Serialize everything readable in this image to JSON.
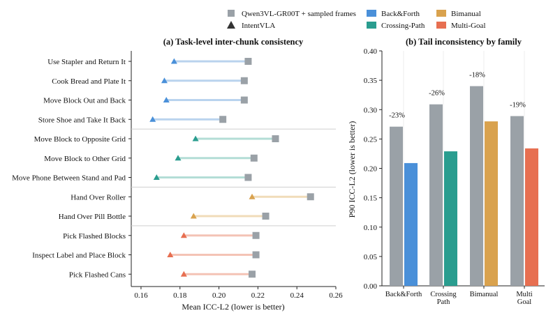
{
  "legend": {
    "items": [
      {
        "label": "Qwen3VL-GR00T + sampled frames",
        "marker": "square",
        "color": "#9aa1a7"
      },
      {
        "label": "IntentVLA",
        "marker": "triangle",
        "color": "#333333"
      },
      {
        "label": "Back&Forth",
        "marker": "patch",
        "color": "#4a90d9"
      },
      {
        "label": "Crossing-Path",
        "marker": "patch",
        "color": "#2a9d8f"
      },
      {
        "label": "Bimanual",
        "marker": "patch",
        "color": "#d9a24e"
      },
      {
        "label": "Multi-Goal",
        "marker": "patch",
        "color": "#e76f51"
      }
    ]
  },
  "chart_data": [
    {
      "type": "dumbbell",
      "title": "(a) Task-level inter-chunk consistency",
      "xlabel": "Mean ICC-L2 (lower is better)",
      "xlim": [
        0.155,
        0.26
      ],
      "xticks": [
        "0.16",
        "0.18",
        "0.20",
        "0.22",
        "0.24",
        "0.26"
      ],
      "xtick_values": [
        0.16,
        0.18,
        0.2,
        0.22,
        0.24,
        0.26
      ],
      "series_names": [
        "Qwen3VL-GR00T + sampled frames",
        "IntentVLA"
      ],
      "rows": [
        {
          "task": "Use Stapler and Return It",
          "family": "Back&Forth",
          "baseline": 0.215,
          "intentvla": 0.177
        },
        {
          "task": "Cook Bread and Plate It",
          "family": "Back&Forth",
          "baseline": 0.213,
          "intentvla": 0.172
        },
        {
          "task": "Move Block Out and Back",
          "family": "Back&Forth",
          "baseline": 0.213,
          "intentvla": 0.173
        },
        {
          "task": "Store Shoe and Take It Back",
          "family": "Back&Forth",
          "baseline": 0.202,
          "intentvla": 0.166
        },
        {
          "task": "Move Block to Opposite Grid",
          "family": "Crossing-Path",
          "baseline": 0.229,
          "intentvla": 0.188
        },
        {
          "task": "Move Block to Other Grid",
          "family": "Crossing-Path",
          "baseline": 0.218,
          "intentvla": 0.179
        },
        {
          "task": "Move Phone Between Stand and Pad",
          "family": "Crossing-Path",
          "baseline": 0.215,
          "intentvla": 0.168
        },
        {
          "task": "Hand Over Roller",
          "family": "Bimanual",
          "baseline": 0.247,
          "intentvla": 0.217
        },
        {
          "task": "Hand Over Pill Bottle",
          "family": "Bimanual",
          "baseline": 0.224,
          "intentvla": 0.187
        },
        {
          "task": "Pick Flashed Blocks",
          "family": "Multi-Goal",
          "baseline": 0.219,
          "intentvla": 0.182
        },
        {
          "task": "Inspect Label and Place Block",
          "family": "Multi-Goal",
          "baseline": 0.219,
          "intentvla": 0.175
        },
        {
          "task": "Pick Flashed Cans",
          "family": "Multi-Goal",
          "baseline": 0.217,
          "intentvla": 0.182
        }
      ],
      "group_separators_after": [
        3,
        6,
        8
      ]
    },
    {
      "type": "bar",
      "title": "(b) Tail inconsistency by family",
      "ylabel": "P90 ICC-L2 (lower is better)",
      "ylim": [
        0,
        0.4
      ],
      "yticks": [
        "0.00",
        "0.05",
        "0.10",
        "0.15",
        "0.20",
        "0.25",
        "0.30",
        "0.35",
        "0.40"
      ],
      "ytick_values": [
        0,
        0.05,
        0.1,
        0.15,
        0.2,
        0.25,
        0.3,
        0.35,
        0.4
      ],
      "categories": [
        {
          "lines": [
            "Back&Forth"
          ],
          "family": "Back&Forth"
        },
        {
          "lines": [
            "Crossing",
            "Path"
          ],
          "family": "Crossing-Path"
        },
        {
          "lines": [
            "Bimanual"
          ],
          "family": "Bimanual"
        },
        {
          "lines": [
            "Multi",
            "Goal"
          ],
          "family": "Multi-Goal"
        }
      ],
      "baseline": [
        0.271,
        0.309,
        0.34,
        0.289
      ],
      "intentvla": [
        0.209,
        0.229,
        0.28,
        0.234
      ],
      "annotations": [
        "-23%",
        "-26%",
        "-18%",
        "-19%"
      ]
    }
  ],
  "colors": {
    "baseline": "#9aa1a7",
    "Back&Forth": "#4a90d9",
    "Crossing-Path": "#2a9d8f",
    "Bimanual": "#d9a24e",
    "Multi-Goal": "#e76f51",
    "Back&Forth_light": "#b9d3ee",
    "Crossing-Path_light": "#b3ddd6",
    "Bimanual_light": "#f0dcb9",
    "Multi-Goal_light": "#f4c3b5"
  }
}
